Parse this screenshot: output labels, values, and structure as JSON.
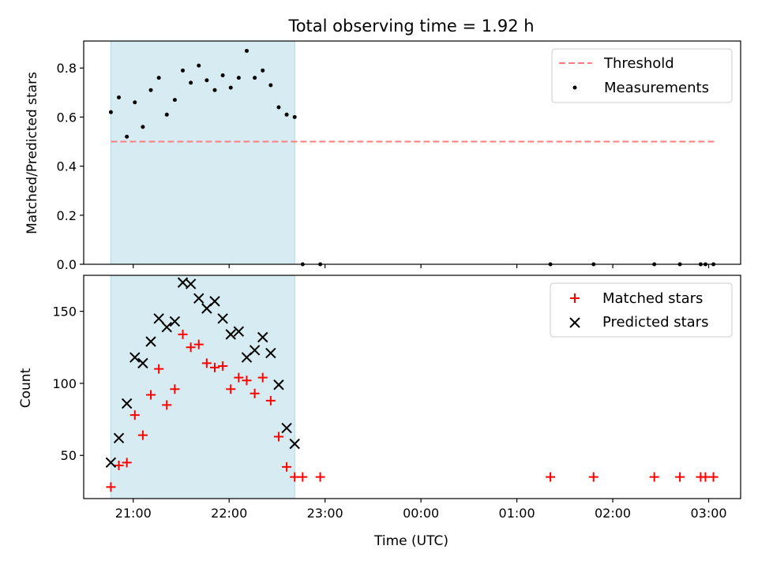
{
  "figure": {
    "title": "Total observing time = 1.92 h"
  },
  "colors": {
    "shade": "#add8e6",
    "threshold": "#ff7f7f",
    "measurement": "#000000",
    "matched": "#ff0000",
    "predicted": "#000000"
  },
  "chart_data": [
    {
      "type": "scatter",
      "title": "Total observing time = 1.92 h",
      "xlabel": "",
      "ylabel": "Matched/Predicted stars",
      "xlim": [
        "20:29",
        "03:20"
      ],
      "ylim": [
        0,
        0.91
      ],
      "yticks": [
        0.0,
        0.2,
        0.4,
        0.6,
        0.8
      ],
      "ytick_labels": [
        "0.0",
        "0.2",
        "0.4",
        "0.6",
        "0.8"
      ],
      "xticks": [
        "21:00",
        "22:00",
        "23:00",
        "00:00",
        "01:00",
        "02:00",
        "03:00"
      ],
      "show_xtick_labels": false,
      "shaded_span": [
        "20:46",
        "22:41"
      ],
      "legend": {
        "position": "top-right",
        "entries": [
          "Threshold",
          "Measurements"
        ]
      },
      "series": [
        {
          "name": "Threshold",
          "kind": "dashed-line",
          "points": [
            [
              "20:46",
              0.5
            ],
            [
              "03:04",
              0.5
            ]
          ]
        },
        {
          "name": "Measurements",
          "kind": "dots",
          "points": [
            [
              "20:46",
              0.62
            ],
            [
              "20:51",
              0.68
            ],
            [
              "20:56",
              0.52
            ],
            [
              "21:01",
              0.66
            ],
            [
              "21:06",
              0.56
            ],
            [
              "21:11",
              0.71
            ],
            [
              "21:16",
              0.76
            ],
            [
              "21:21",
              0.61
            ],
            [
              "21:26",
              0.67
            ],
            [
              "21:31",
              0.79
            ],
            [
              "21:36",
              0.74
            ],
            [
              "21:41",
              0.81
            ],
            [
              "21:46",
              0.75
            ],
            [
              "21:51",
              0.71
            ],
            [
              "21:56",
              0.77
            ],
            [
              "22:01",
              0.72
            ],
            [
              "22:06",
              0.76
            ],
            [
              "22:11",
              0.87
            ],
            [
              "22:16",
              0.76
            ],
            [
              "22:21",
              0.79
            ],
            [
              "22:26",
              0.73
            ],
            [
              "22:31",
              0.64
            ],
            [
              "22:36",
              0.61
            ],
            [
              "22:41",
              0.6
            ],
            [
              "22:46",
              0.0
            ],
            [
              "22:57",
              0.0
            ],
            [
              "01:21",
              0.0
            ],
            [
              "01:48",
              0.0
            ],
            [
              "02:26",
              0.0
            ],
            [
              "02:42",
              0.0
            ],
            [
              "02:55",
              0.0
            ],
            [
              "02:58",
              0.0
            ],
            [
              "03:03",
              0.0
            ]
          ]
        }
      ]
    },
    {
      "type": "scatter",
      "title": "",
      "xlabel": "Time (UTC)",
      "ylabel": "Count",
      "xlim": [
        "20:29",
        "03:20"
      ],
      "ylim": [
        20,
        175
      ],
      "yticks": [
        50,
        100,
        150
      ],
      "ytick_labels": [
        "50",
        "100",
        "150"
      ],
      "xticks": [
        "21:00",
        "22:00",
        "23:00",
        "00:00",
        "01:00",
        "02:00",
        "03:00"
      ],
      "xtick_labels": [
        "21:00",
        "22:00",
        "23:00",
        "00:00",
        "01:00",
        "02:00",
        "03:00"
      ],
      "shaded_span": [
        "20:46",
        "22:41"
      ],
      "legend": {
        "position": "top-right",
        "entries": [
          "Matched stars",
          "Predicted stars"
        ]
      },
      "series": [
        {
          "name": "Matched stars",
          "kind": "plus",
          "points": [
            [
              "20:46",
              28
            ],
            [
              "20:51",
              43
            ],
            [
              "20:56",
              45
            ],
            [
              "21:01",
              78
            ],
            [
              "21:06",
              64
            ],
            [
              "21:11",
              92
            ],
            [
              "21:16",
              110
            ],
            [
              "21:21",
              85
            ],
            [
              "21:26",
              96
            ],
            [
              "21:31",
              134
            ],
            [
              "21:36",
              125
            ],
            [
              "21:41",
              127
            ],
            [
              "21:46",
              114
            ],
            [
              "21:51",
              111
            ],
            [
              "21:56",
              112
            ],
            [
              "22:01",
              96
            ],
            [
              "22:06",
              104
            ],
            [
              "22:11",
              102
            ],
            [
              "22:16",
              93
            ],
            [
              "22:21",
              104
            ],
            [
              "22:26",
              88
            ],
            [
              "22:31",
              63
            ],
            [
              "22:36",
              42
            ],
            [
              "22:41",
              35
            ],
            [
              "22:46",
              35
            ],
            [
              "22:57",
              35
            ],
            [
              "01:21",
              35
            ],
            [
              "01:48",
              35
            ],
            [
              "02:26",
              35
            ],
            [
              "02:42",
              35
            ],
            [
              "02:55",
              35
            ],
            [
              "02:58",
              35
            ],
            [
              "03:03",
              35
            ]
          ]
        },
        {
          "name": "Predicted stars",
          "kind": "cross",
          "points": [
            [
              "20:46",
              45
            ],
            [
              "20:51",
              62
            ],
            [
              "20:56",
              86
            ],
            [
              "21:01",
              118
            ],
            [
              "21:06",
              114
            ],
            [
              "21:11",
              129
            ],
            [
              "21:16",
              145
            ],
            [
              "21:21",
              139
            ],
            [
              "21:26",
              143
            ],
            [
              "21:31",
              170
            ],
            [
              "21:36",
              169
            ],
            [
              "21:41",
              159
            ],
            [
              "21:46",
              152
            ],
            [
              "21:51",
              157
            ],
            [
              "21:56",
              145
            ],
            [
              "22:01",
              134
            ],
            [
              "22:06",
              136
            ],
            [
              "22:11",
              118
            ],
            [
              "22:16",
              123
            ],
            [
              "22:21",
              132
            ],
            [
              "22:26",
              121
            ],
            [
              "22:31",
              99
            ],
            [
              "22:36",
              69
            ],
            [
              "22:41",
              58
            ]
          ]
        }
      ]
    }
  ]
}
